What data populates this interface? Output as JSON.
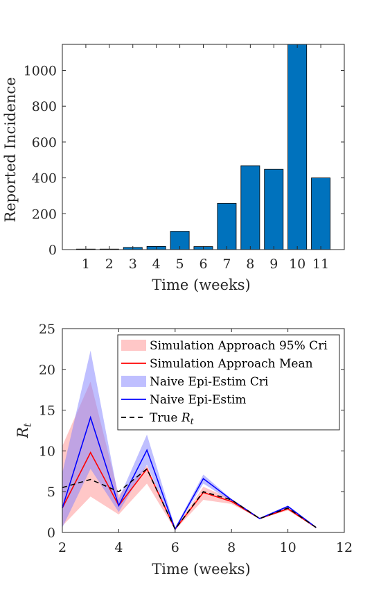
{
  "chart_data": [
    {
      "type": "bar",
      "xlabel": "Time  (weeks)",
      "ylabel": "Reported  Incidence",
      "categories": [
        1,
        2,
        3,
        4,
        5,
        6,
        7,
        8,
        9,
        10,
        11
      ],
      "values": [
        3,
        3,
        12,
        18,
        102,
        17,
        258,
        468,
        448,
        1145,
        400
      ],
      "ylim": [
        0,
        1145
      ],
      "yticks": [
        0,
        200,
        400,
        600,
        800,
        1000
      ],
      "xlim": [
        0,
        12
      ],
      "bar_color": "#0072BD",
      "grid": false
    },
    {
      "type": "line",
      "xlabel": "Time  (weeks)",
      "ylabel": "R",
      "ylabel_sub": "t",
      "xlim": [
        2,
        12
      ],
      "ylim": [
        0,
        25
      ],
      "xticks": [
        2,
        4,
        6,
        8,
        10,
        12
      ],
      "yticks": [
        0,
        5,
        10,
        15,
        20,
        25
      ],
      "legend_position": "top-right",
      "grid": false,
      "x": [
        2,
        3,
        4,
        5,
        6,
        7,
        8,
        9,
        10,
        11
      ],
      "bands": [
        {
          "name": "Simulation Approach 95% Cri",
          "color": "#ff9999",
          "opacity": 0.55,
          "lower": [
            0.8,
            4.4,
            2.2,
            6.0,
            0.3,
            4.0,
            3.5,
            1.7,
            2.7,
            0.6
          ],
          "upper": [
            10.6,
            18.5,
            4.6,
            8.2,
            0.5,
            5.6,
            4.1,
            1.8,
            3.1,
            0.7
          ]
        },
        {
          "name": "Naive Epi-Estim Cri",
          "color": "#8080ff",
          "opacity": 0.5,
          "lower": [
            0.6,
            7.8,
            2.5,
            8.3,
            0.3,
            6.0,
            3.8,
            1.7,
            3.0,
            0.6
          ],
          "upper": [
            7.3,
            22.3,
            4.1,
            12.0,
            0.6,
            7.1,
            4.1,
            1.8,
            3.3,
            0.7
          ]
        }
      ],
      "series": [
        {
          "name": "Simulation Approach Mean",
          "color": "#ff0000",
          "dash": "solid",
          "values": [
            3.0,
            9.8,
            3.3,
            7.8,
            0.4,
            4.9,
            3.8,
            1.7,
            2.9,
            0.6
          ]
        },
        {
          "name": "Naive Epi-Estim",
          "color": "#0000ff",
          "dash": "solid",
          "values": [
            3.0,
            14.1,
            3.3,
            10.1,
            0.4,
            6.6,
            4.0,
            1.7,
            3.2,
            0.6
          ]
        },
        {
          "name": "True R",
          "name_sub": "t",
          "color": "#000000",
          "dash": "dashed",
          "values": [
            5.5,
            6.5,
            5.0,
            7.8,
            0.4,
            5.0,
            4.0,
            1.7,
            3.0,
            0.6
          ]
        }
      ]
    }
  ]
}
